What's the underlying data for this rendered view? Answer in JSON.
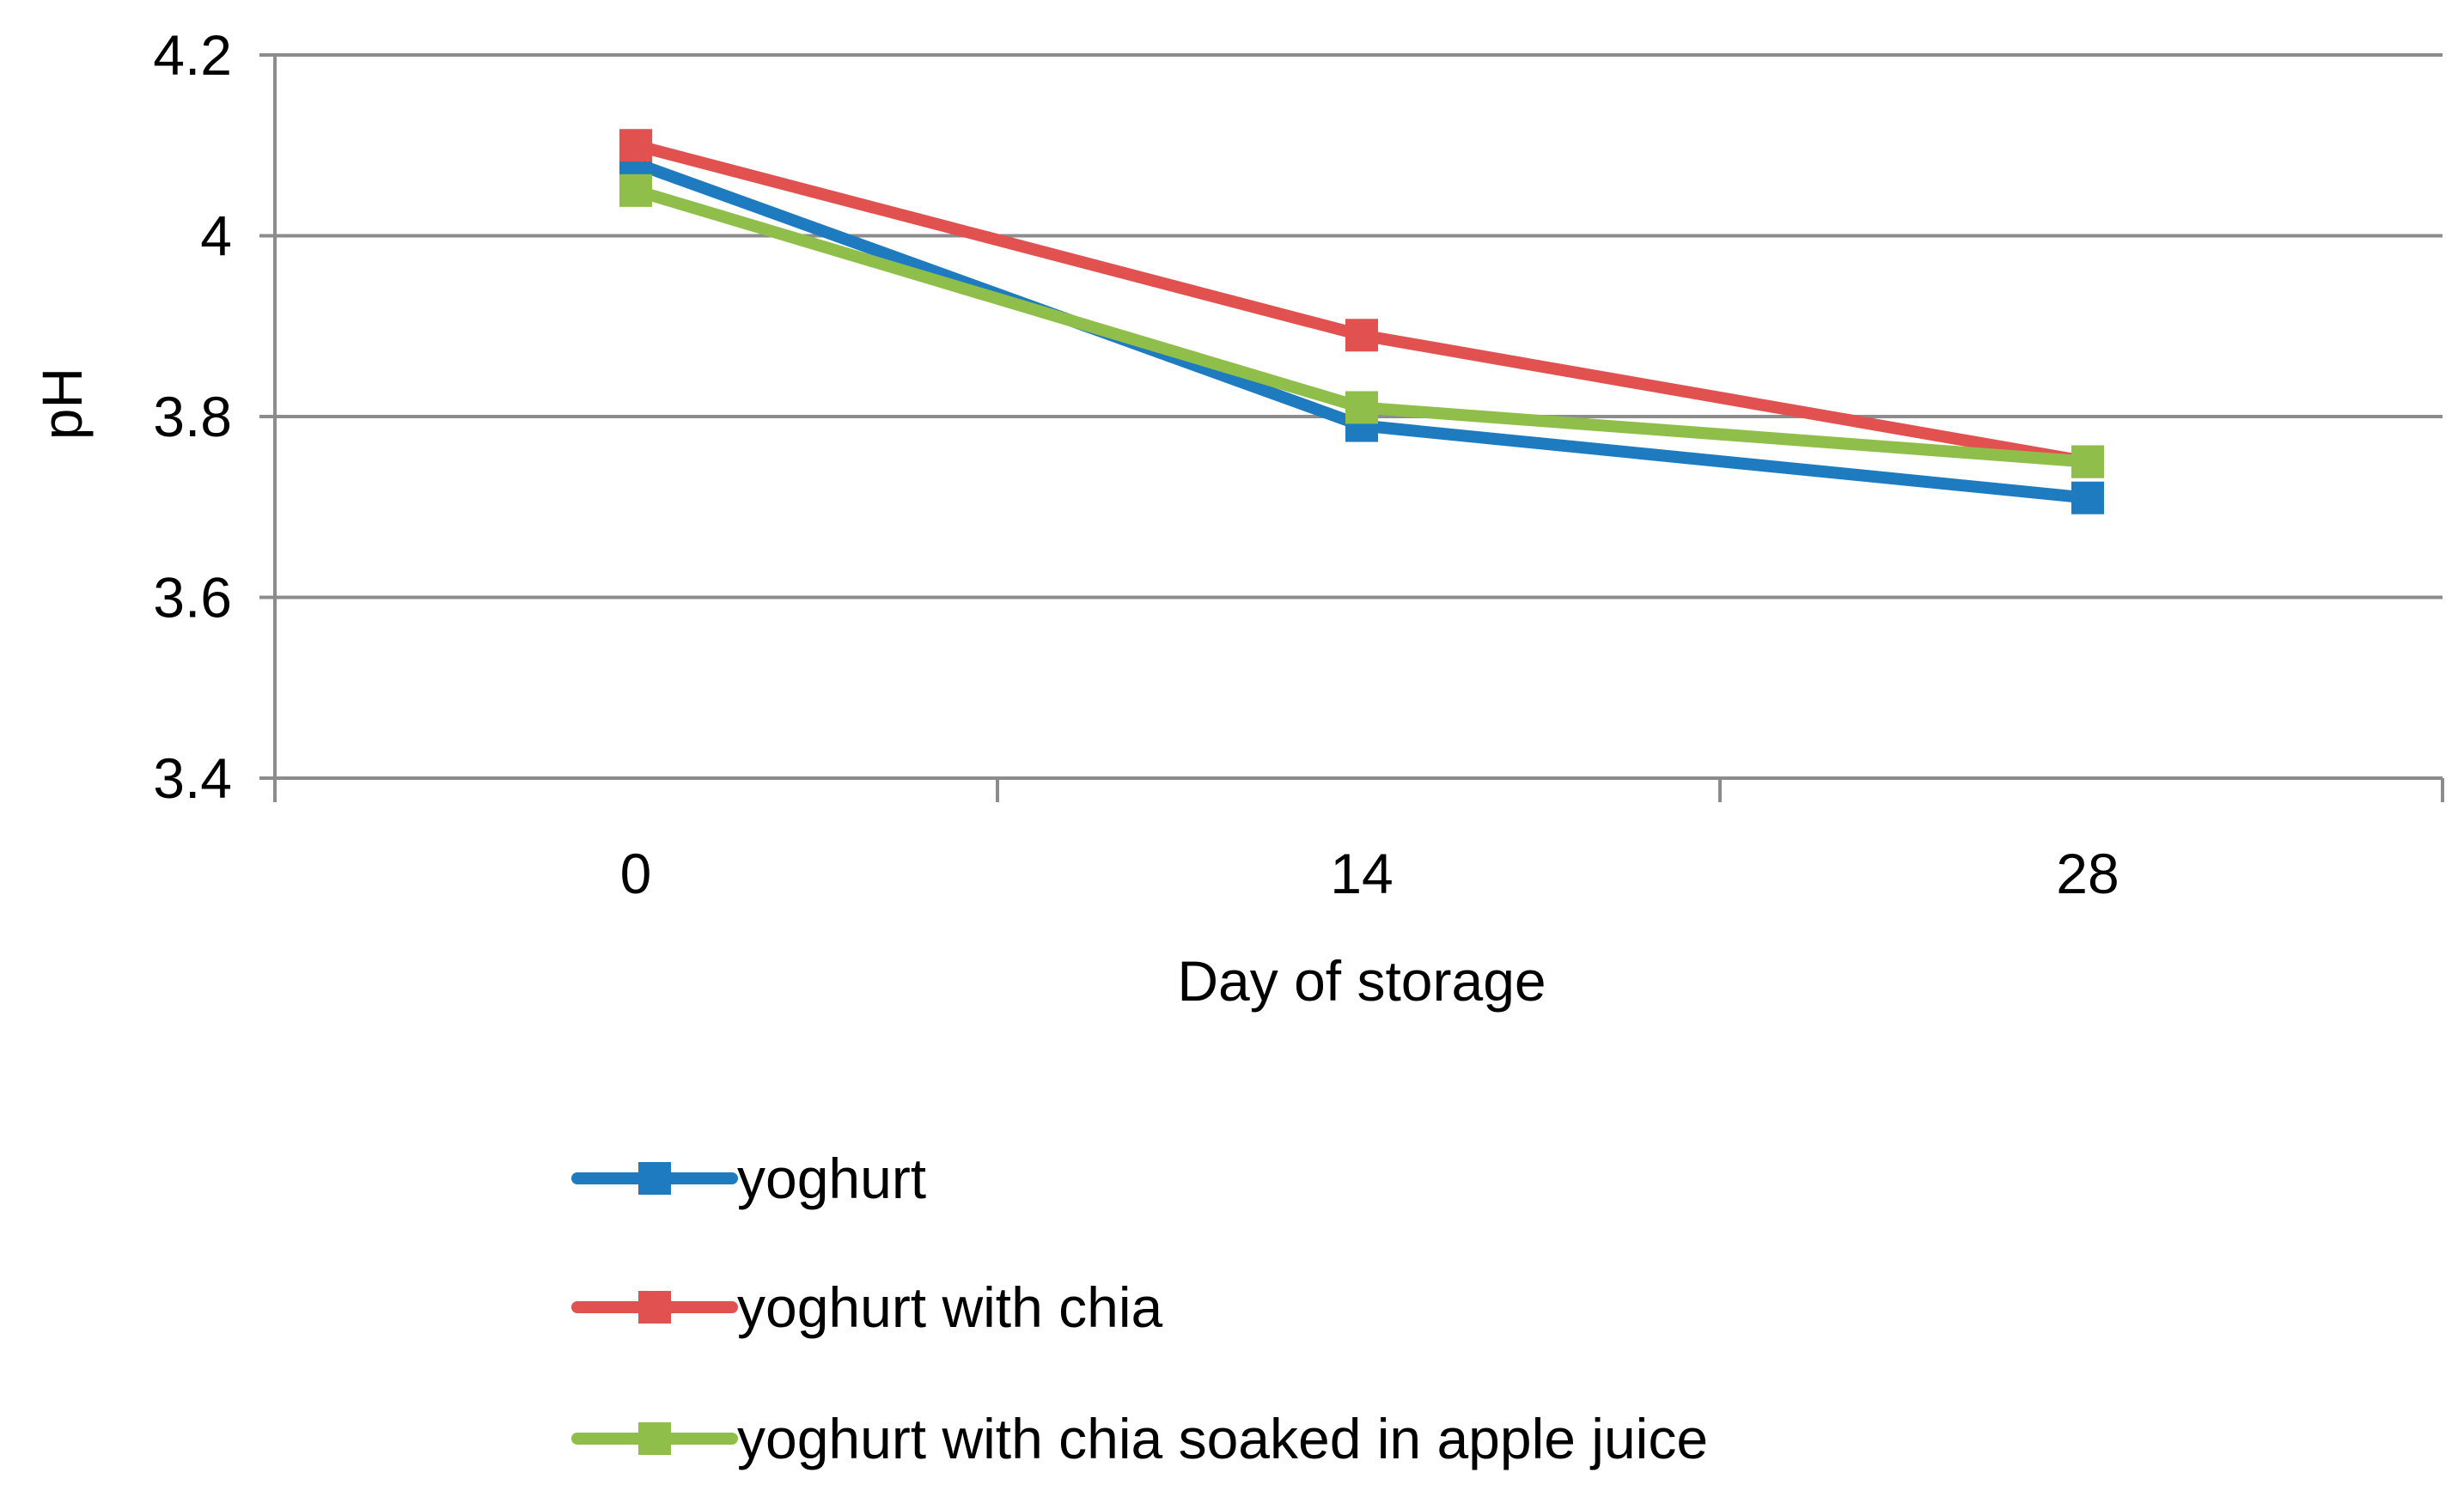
{
  "chart_data": {
    "type": "line",
    "categories": [
      "0",
      "14",
      "28"
    ],
    "x": [
      0,
      14,
      28
    ],
    "series": [
      {
        "name": "yoghurt",
        "color": "#1f7bc0",
        "values": [
          4.08,
          3.79,
          3.71
        ]
      },
      {
        "name": "yoghurt with chia",
        "color": "#e0514f",
        "values": [
          4.1,
          3.89,
          3.75
        ]
      },
      {
        "name": "yoghurt with chia soaked in apple juice",
        "color": "#8fbf4a",
        "values": [
          4.05,
          3.81,
          3.75
        ]
      }
    ],
    "xlabel": "Day of storage",
    "ylabel": "pH",
    "ylim": [
      3.4,
      4.2
    ],
    "yticks": [
      "3.4",
      "3.6",
      "3.8",
      "4",
      "4.2"
    ],
    "grid": true,
    "legend_position": "bottom",
    "marker": "square"
  }
}
